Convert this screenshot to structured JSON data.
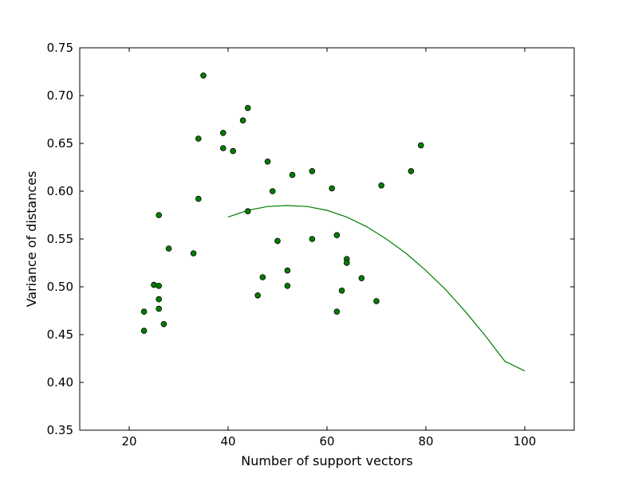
{
  "chart_data": {
    "type": "scatter",
    "title": "",
    "xlabel": "Number of support vectors",
    "ylabel": "Variance of distances",
    "xlim": [
      10,
      110
    ],
    "ylim": [
      0.35,
      0.75
    ],
    "xticks": [
      20,
      40,
      60,
      80,
      100
    ],
    "xtick_labels": [
      "20",
      "40",
      "60",
      "80",
      "100"
    ],
    "yticks": [
      0.35,
      0.4,
      0.45,
      0.5,
      0.55,
      0.6,
      0.65,
      0.7,
      0.75
    ],
    "ytick_labels": [
      "0.35",
      "0.40",
      "0.45",
      "0.50",
      "0.55",
      "0.60",
      "0.65",
      "0.70",
      "0.75"
    ],
    "grid": false,
    "colors": {
      "marker_fill": "#007f00",
      "marker_edge": "#000000",
      "curve": "#008000",
      "axes": "#000000"
    },
    "points": [
      {
        "x": 23,
        "y": 0.474
      },
      {
        "x": 23,
        "y": 0.454
      },
      {
        "x": 25,
        "y": 0.502
      },
      {
        "x": 26,
        "y": 0.501
      },
      {
        "x": 26,
        "y": 0.487
      },
      {
        "x": 26,
        "y": 0.477
      },
      {
        "x": 26,
        "y": 0.575
      },
      {
        "x": 27,
        "y": 0.461
      },
      {
        "x": 28,
        "y": 0.54
      },
      {
        "x": 33,
        "y": 0.535
      },
      {
        "x": 34,
        "y": 0.655
      },
      {
        "x": 34,
        "y": 0.592
      },
      {
        "x": 35,
        "y": 0.721
      },
      {
        "x": 39,
        "y": 0.661
      },
      {
        "x": 39,
        "y": 0.645
      },
      {
        "x": 41,
        "y": 0.642
      },
      {
        "x": 43,
        "y": 0.674
      },
      {
        "x": 44,
        "y": 0.687
      },
      {
        "x": 44,
        "y": 0.579
      },
      {
        "x": 46,
        "y": 0.491
      },
      {
        "x": 47,
        "y": 0.51
      },
      {
        "x": 48,
        "y": 0.631
      },
      {
        "x": 49,
        "y": 0.6
      },
      {
        "x": 50,
        "y": 0.548
      },
      {
        "x": 52,
        "y": 0.517
      },
      {
        "x": 52,
        "y": 0.501
      },
      {
        "x": 53,
        "y": 0.617
      },
      {
        "x": 57,
        "y": 0.621
      },
      {
        "x": 57,
        "y": 0.55
      },
      {
        "x": 61,
        "y": 0.603
      },
      {
        "x": 62,
        "y": 0.554
      },
      {
        "x": 62,
        "y": 0.474
      },
      {
        "x": 63,
        "y": 0.496
      },
      {
        "x": 64,
        "y": 0.529
      },
      {
        "x": 64,
        "y": 0.525
      },
      {
        "x": 67,
        "y": 0.509
      },
      {
        "x": 70,
        "y": 0.485
      },
      {
        "x": 71,
        "y": 0.606
      },
      {
        "x": 77,
        "y": 0.621
      },
      {
        "x": 79,
        "y": 0.648
      }
    ],
    "fit_curve": {
      "x": [
        40,
        44,
        48,
        52,
        56,
        60,
        64,
        68,
        72,
        76,
        80,
        84,
        88,
        92,
        96,
        100
      ],
      "y": [
        0.573,
        0.58,
        0.584,
        0.585,
        0.584,
        0.58,
        0.573,
        0.563,
        0.55,
        0.535,
        0.517,
        0.497,
        0.474,
        0.449,
        0.422,
        0.412
      ]
    }
  }
}
